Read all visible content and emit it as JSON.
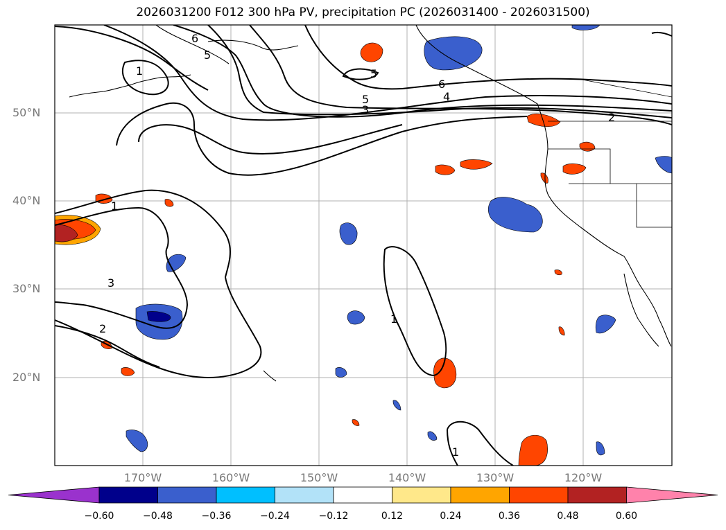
{
  "title": "2026031200 F012 300 hPa PV, precipitation PC (2026031400 - 2026031500)",
  "lat_labels": [
    "50°N",
    "40°N",
    "30°N",
    "20°N"
  ],
  "lon_labels": [
    "170°W",
    "160°W",
    "150°W",
    "140°W",
    "130°W",
    "120°W"
  ],
  "contour_labels": [
    "6",
    "5",
    "1",
    "6",
    "4",
    "5",
    "3",
    "5",
    "1",
    "3",
    "2",
    "1",
    "1",
    "2"
  ],
  "colorbar": {
    "ticks": [
      "−0.60",
      "−0.48",
      "−0.36",
      "−0.24",
      "−0.12",
      "0.12",
      "0.24",
      "0.36",
      "0.48",
      "0.60"
    ],
    "colors": [
      "#9a32cd",
      "#00008b",
      "#3a5fcd",
      "#00bfff",
      "#b2e2f8",
      "#ffffff",
      "#ffe88a",
      "#ffa500",
      "#ff4500",
      "#b22222",
      "#ff82ab"
    ]
  },
  "colors": {
    "pos_high": "#ff4500",
    "pos_mid": "#ffa500",
    "pos_low": "#ffe88a",
    "neg_low": "#b2e2f8",
    "neg_mid": "#3a5fcd",
    "neg_high": "#00008b",
    "dark_red": "#b22222"
  }
}
